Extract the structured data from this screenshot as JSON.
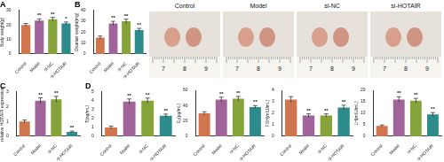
{
  "chart_data": [
    {
      "type": "bar",
      "title": "A",
      "y_label": "Body weight(g)",
      "categories": [
        "Control",
        "Model",
        "si-NC",
        "si-HOTAIR"
      ],
      "values": [
        20,
        23,
        24,
        21
      ],
      "errors": [
        1,
        1.2,
        1.2,
        1
      ],
      "annotations": [
        null,
        "**",
        "**",
        "*"
      ],
      "colors": [
        "#d0764f",
        "#a0649b",
        "#86a33a",
        "#2e8b8b"
      ],
      "ylim": [
        0,
        30
      ],
      "yticks": [
        0,
        10,
        20,
        30
      ],
      "grid": false
    },
    {
      "type": "bar",
      "title": "B",
      "y_label": "Ovarian weight(mg)",
      "categories": [
        "Control",
        "Model",
        "si-NC",
        "si-HOTAIR"
      ],
      "values": [
        15,
        28,
        30,
        22
      ],
      "errors": [
        1.5,
        2,
        2,
        1.5
      ],
      "annotations": [
        null,
        "**",
        "**",
        "**"
      ],
      "colors": [
        "#d0764f",
        "#a0649b",
        "#86a33a",
        "#2e8b8b"
      ],
      "ylim": [
        0,
        40
      ],
      "yticks": [
        0,
        10,
        20,
        30,
        40
      ],
      "grid": false
    },
    {
      "type": "bar",
      "title": "C",
      "y_label": "relative HOTAIR expression",
      "categories": [
        "Control",
        "Model",
        "si-NC",
        "si-HOTAIR"
      ],
      "values": [
        1.0,
        2.4,
        2.5,
        0.3
      ],
      "errors": [
        0.1,
        0.2,
        0.2,
        0.05
      ],
      "annotations": [
        null,
        "**",
        "**",
        "**"
      ],
      "colors": [
        "#d0764f",
        "#a0649b",
        "#86a33a",
        "#2e8b8b"
      ],
      "ylim": [
        0,
        3
      ],
      "yticks": [
        0,
        1,
        2,
        3
      ],
      "grid": false
    },
    {
      "type": "bar",
      "title": "D",
      "y_label": "T(ng/mL)",
      "categories": [
        "Control",
        "Model",
        "si-NC",
        "si-HOTAIR"
      ],
      "values": [
        1.0,
        3.9,
        4.0,
        2.3
      ],
      "errors": [
        0.15,
        0.3,
        0.3,
        0.2
      ],
      "annotations": [
        null,
        "**",
        "**",
        "**"
      ],
      "colors": [
        "#d0764f",
        "#a0649b",
        "#86a33a",
        "#2e8b8b"
      ],
      "ylim": [
        0,
        5
      ],
      "yticks": [
        0,
        1,
        2,
        3,
        4,
        5
      ],
      "grid": false
    },
    {
      "type": "bar",
      "y_label": "E₂(pg/mL)",
      "categories": [
        "Control",
        "Model",
        "si-NC",
        "si-HOTAIR"
      ],
      "values": [
        30,
        48,
        49,
        38
      ],
      "errors": [
        2,
        3,
        3,
        2
      ],
      "annotations": [
        null,
        "**",
        "**",
        "**"
      ],
      "colors": [
        "#d0764f",
        "#a0649b",
        "#86a33a",
        "#2e8b8b"
      ],
      "ylim": [
        0,
        60
      ],
      "yticks": [
        0,
        20,
        40,
        60
      ],
      "grid": false
    },
    {
      "type": "bar",
      "y_label": "FSH(mIU/mL)",
      "categories": [
        "Control",
        "Model",
        "si-NC",
        "si-HOTAIR"
      ],
      "values": [
        3.2,
        1.8,
        1.8,
        2.5
      ],
      "errors": [
        0.25,
        0.15,
        0.15,
        0.2
      ],
      "annotations": [
        null,
        "**",
        "**",
        "**"
      ],
      "colors": [
        "#d0764f",
        "#a0649b",
        "#86a33a",
        "#2e8b8b"
      ],
      "ylim": [
        0,
        4
      ],
      "yticks": [
        0,
        1,
        2,
        3,
        4
      ],
      "grid": false
    },
    {
      "type": "bar",
      "y_label": "LH(mIU/mL)",
      "categories": [
        "Control",
        "Model",
        "si-NC",
        "si-HOTAIR"
      ],
      "values": [
        4.5,
        16,
        15.5,
        9.5
      ],
      "errors": [
        0.4,
        1.2,
        1,
        0.8
      ],
      "annotations": [
        null,
        "**",
        "**",
        "**"
      ],
      "colors": [
        "#d0764f",
        "#a0649b",
        "#86a33a",
        "#2e8b8b"
      ],
      "ylim": [
        0,
        20
      ],
      "yticks": [
        0,
        5,
        10,
        15,
        20
      ],
      "grid": false
    }
  ],
  "photos": {
    "labels": [
      "Control",
      "Model",
      "si-NC",
      "si-HOTAIR"
    ],
    "ruler_labels": [
      "7",
      "8",
      "9"
    ]
  }
}
